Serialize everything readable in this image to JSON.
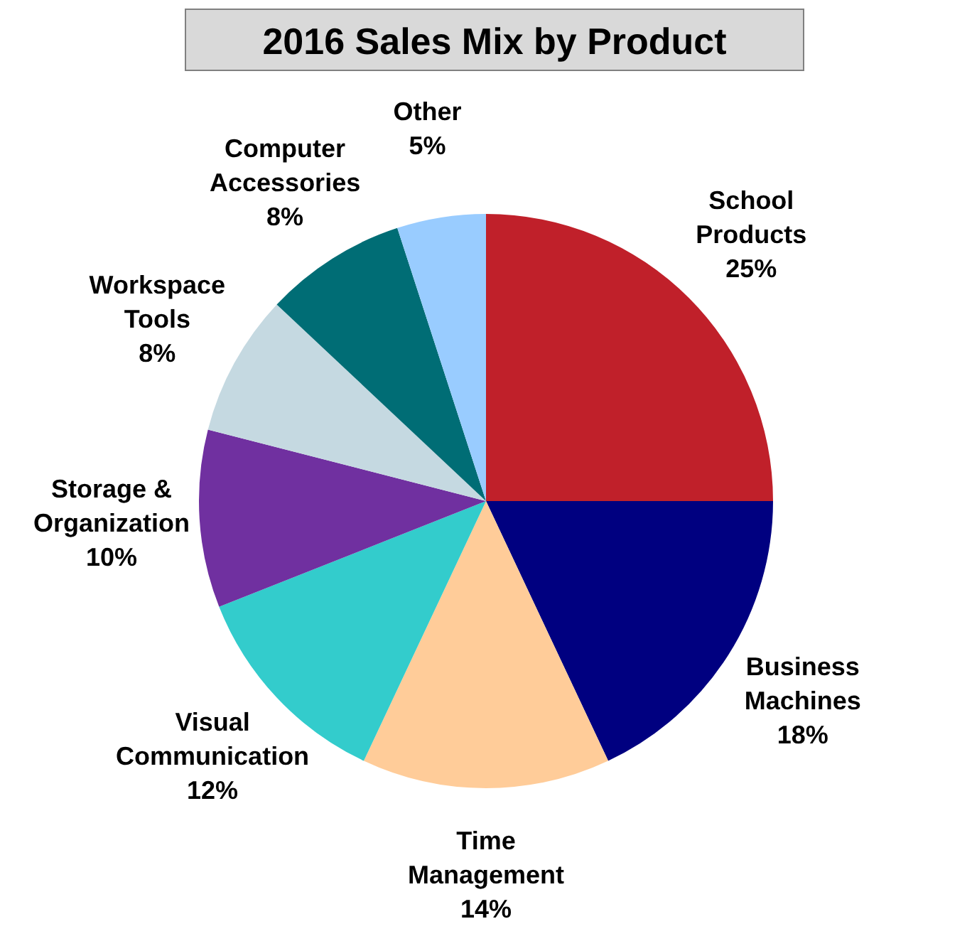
{
  "chart_data": {
    "type": "pie",
    "title": "2016 Sales Mix by Product",
    "categories": [
      "School Products",
      "Business Machines",
      "Time Management",
      "Visual Communication",
      "Storage & Organization",
      "Workspace Tools",
      "Computer Accessories",
      "Other"
    ],
    "values": [
      25,
      18,
      14,
      12,
      10,
      8,
      8,
      5
    ],
    "value_labels": [
      "25%",
      "18%",
      "14%",
      "12%",
      "10%",
      "8%",
      "8%",
      "5%"
    ],
    "colors": [
      "#c0202a",
      "#000080",
      "#ffcc99",
      "#33cccc",
      "#7030a0",
      "#c5d9e1",
      "#006d75",
      "#99ccff"
    ],
    "legend": false
  }
}
